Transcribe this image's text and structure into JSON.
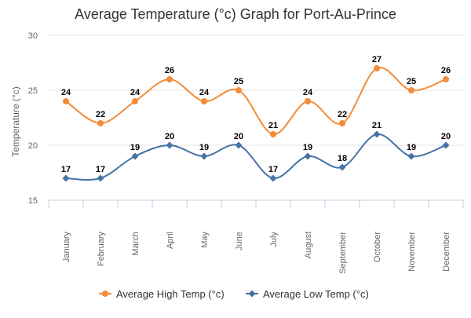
{
  "colors": {
    "high": "#F28C38",
    "low": "#4572A7",
    "grid": "#E6E6E6",
    "axis": "#C0D0E0",
    "text": "#666666",
    "title": "#333333"
  },
  "chart_data": {
    "type": "line",
    "title": "Average Temperature (°c) Graph for Port-Au-Prince",
    "xlabel": "",
    "ylabel": "Temperature (°c)",
    "categories": [
      "January",
      "February",
      "March",
      "April",
      "May",
      "June",
      "July",
      "August",
      "September",
      "October",
      "November",
      "December"
    ],
    "ylim": [
      15,
      30
    ],
    "yticks": [
      15,
      20,
      25,
      30
    ],
    "grid": true,
    "legend": "bottom-center",
    "series": [
      {
        "name": "Average High Temp (°c)",
        "values": [
          24,
          22,
          24,
          26,
          24,
          25,
          21,
          24,
          22,
          27,
          25,
          26
        ],
        "marker": "circle",
        "color": "#F28C38"
      },
      {
        "name": "Average Low Temp (°c)",
        "values": [
          17,
          17,
          19,
          20,
          19,
          20,
          17,
          19,
          18,
          21,
          19,
          20
        ],
        "marker": "diamond",
        "color": "#4572A7"
      }
    ]
  }
}
